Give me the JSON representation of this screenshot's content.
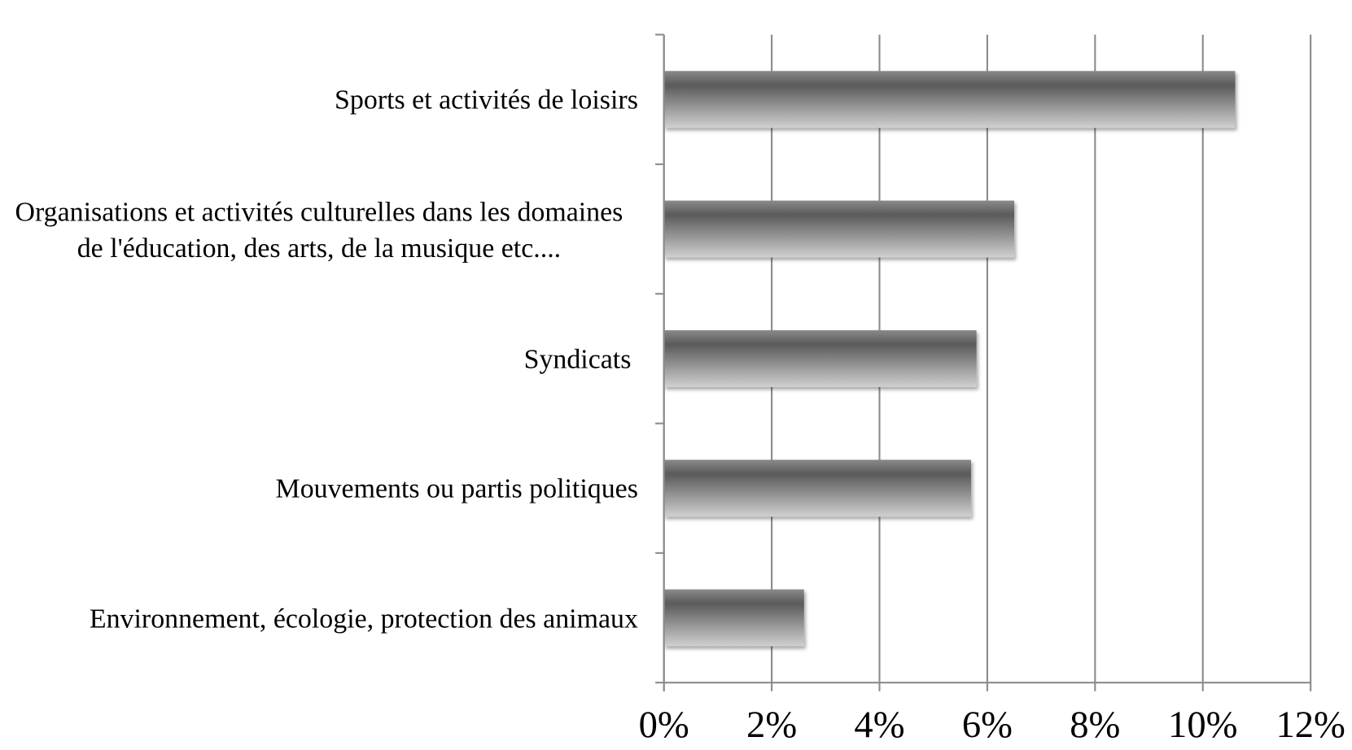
{
  "chart_data": {
    "type": "barh",
    "categories": [
      "Sports et activités de loisirs",
      "Organisations et activités culturelles dans les domaines de l'éducation, des arts, de la musique etc....",
      "Syndicats ",
      "Mouvements ou partis politiques",
      "Environnement, écologie, protection des animaux"
    ],
    "values": [
      10.6,
      6.5,
      5.8,
      5.7,
      2.6
    ],
    "color": "#7a7a7a",
    "xlim": [
      0,
      12
    ],
    "xticks": [
      {
        "value": 0,
        "label": "0%"
      },
      {
        "value": 2,
        "label": "2%"
      },
      {
        "value": 4,
        "label": "4%"
      },
      {
        "value": 6,
        "label": "6%"
      },
      {
        "value": 8,
        "label": "8%"
      },
      {
        "value": 10,
        "label": "10%"
      },
      {
        "value": 12,
        "label": "12%"
      }
    ],
    "grid": true
  }
}
